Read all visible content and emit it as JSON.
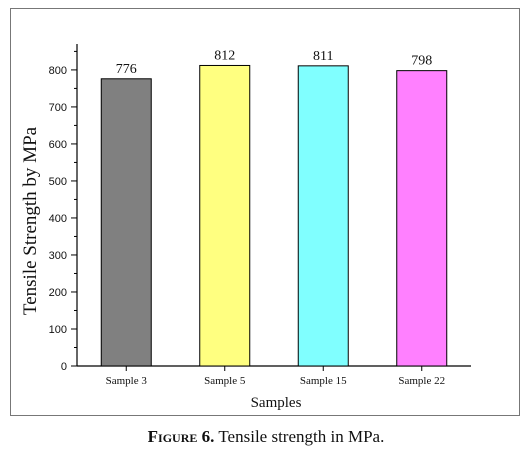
{
  "chart_data": {
    "type": "bar",
    "categories": [
      "Sample 3",
      "Sample 5",
      "Sample 15",
      "Sample 22"
    ],
    "values": [
      776,
      812,
      811,
      798
    ],
    "data_labels": [
      "776",
      "812",
      "811",
      "798"
    ],
    "colors": [
      "#808080",
      "#ffff80",
      "#80ffff",
      "#ff80ff"
    ],
    "xlabel": "Samples",
    "ylabel": "Tensile Strength by MPa",
    "ylim": [
      0,
      870
    ],
    "yticks": [
      0,
      100,
      200,
      300,
      400,
      500,
      600,
      700,
      800
    ],
    "grid": false
  },
  "caption": {
    "lead": "Figure",
    "number": "6.",
    "text": "Tensile strength in MPa."
  }
}
